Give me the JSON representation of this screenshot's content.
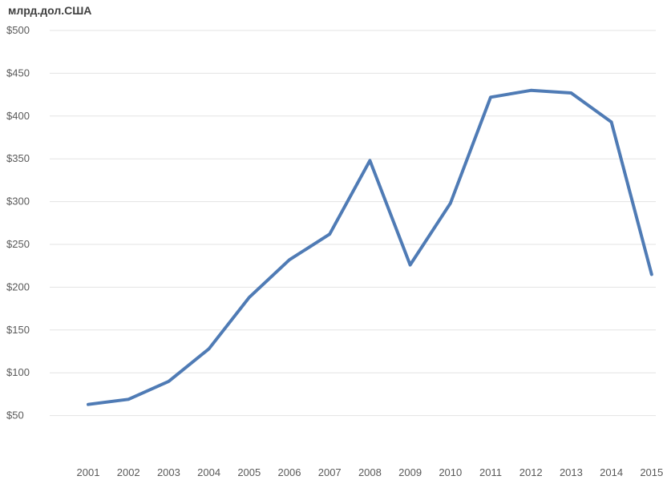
{
  "chart_data": {
    "type": "line",
    "unit_label": "млрд.дол.США",
    "categories": [
      "2001",
      "2002",
      "2003",
      "2004",
      "2005",
      "2006",
      "2007",
      "2008",
      "2009",
      "2010",
      "2011",
      "2012",
      "2013",
      "2014",
      "2015"
    ],
    "series": [
      {
        "values": [
          63,
          69,
          90,
          128,
          188,
          232,
          262,
          348,
          226,
          298,
          422,
          430,
          427,
          393,
          215
        ],
        "color": "#4f7bb5"
      }
    ],
    "y_ticks": [
      {
        "value": 50,
        "label": "$50"
      },
      {
        "value": 100,
        "label": "$100"
      },
      {
        "value": 150,
        "label": "$150"
      },
      {
        "value": 200,
        "label": "$200"
      },
      {
        "value": 250,
        "label": "$250"
      },
      {
        "value": 300,
        "label": "$300"
      },
      {
        "value": 350,
        "label": "$350"
      },
      {
        "value": 400,
        "label": "$400"
      },
      {
        "value": 450,
        "label": "$450"
      },
      {
        "value": 500,
        "label": "$500"
      }
    ],
    "ylim": [
      0,
      500
    ],
    "grid": true,
    "legend": "none"
  }
}
